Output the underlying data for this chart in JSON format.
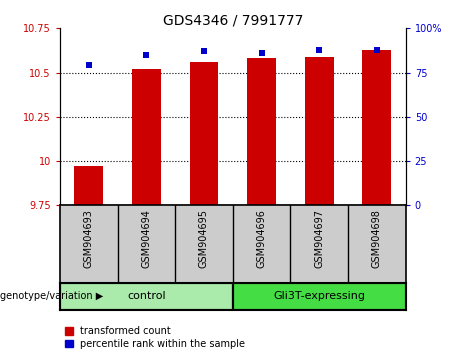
{
  "title": "GDS4346 / 7991777",
  "samples": [
    "GSM904693",
    "GSM904694",
    "GSM904695",
    "GSM904696",
    "GSM904697",
    "GSM904698"
  ],
  "red_values": [
    9.97,
    10.52,
    10.56,
    10.58,
    10.59,
    10.63
  ],
  "blue_values": [
    79,
    85,
    87,
    86,
    88,
    88
  ],
  "ylim_left": [
    9.75,
    10.75
  ],
  "ylim_right": [
    0,
    100
  ],
  "yticks_left": [
    9.75,
    10.0,
    10.25,
    10.5,
    10.75
  ],
  "ytick_labels_left": [
    "9.75",
    "10",
    "10.25",
    "10.5",
    "10.75"
  ],
  "yticks_right": [
    0,
    25,
    50,
    75,
    100
  ],
  "ytick_labels_right": [
    "0",
    "25",
    "50",
    "75",
    "100%"
  ],
  "groups": [
    {
      "label": "control",
      "indices": [
        0,
        1,
        2
      ],
      "color": "#aaeaaa"
    },
    {
      "label": "Gli3T-expressing",
      "indices": [
        3,
        4,
        5
      ],
      "color": "#44dd44"
    }
  ],
  "bar_color_red": "#CC0000",
  "bar_color_blue": "#0000CC",
  "legend_items": [
    {
      "color": "#CC0000",
      "label": "transformed count"
    },
    {
      "color": "#0000CC",
      "label": "percentile rank within the sample"
    }
  ],
  "group_label": "genotype/variation",
  "bar_width": 0.5,
  "blue_marker_size": 25,
  "grid_yticks": [
    10.0,
    10.25,
    10.5
  ],
  "sample_bg_color": "#cccccc",
  "fig_width": 4.61,
  "fig_height": 3.54
}
